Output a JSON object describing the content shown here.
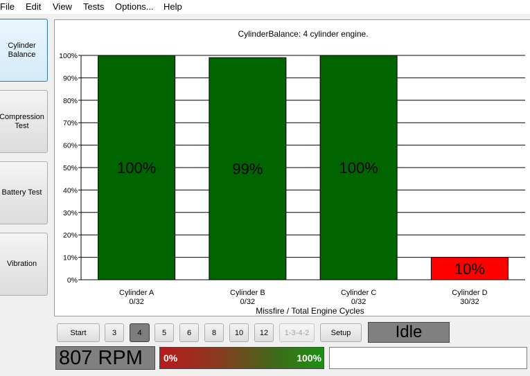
{
  "menu": [
    "File",
    "Edit",
    "View",
    "Tests",
    "Options...",
    "Help"
  ],
  "sidebar": [
    {
      "label": "Cylinder Balance",
      "active": true
    },
    {
      "label": "Compression Test",
      "active": false
    },
    {
      "label": "Battery Test",
      "active": false
    },
    {
      "label": "Vibration",
      "active": false
    }
  ],
  "chart_data": {
    "type": "bar",
    "title": "CylinderBalance: 4 cylinder engine.",
    "xlabel": "Missfire / Total Engine Cycles",
    "ylabel": "",
    "ylim": [
      0,
      100
    ],
    "yticks": [
      "0%",
      "10%",
      "20%",
      "30%",
      "40%",
      "50%",
      "60%",
      "70%",
      "80%",
      "90%",
      "100%"
    ],
    "categories": [
      "Cylinder A",
      "Cylinder B",
      "Cylinder C",
      "Cylinder D"
    ],
    "sublabels": [
      "0/32",
      "0/32",
      "0/32",
      "30/32"
    ],
    "values": [
      100,
      99,
      100,
      10
    ],
    "value_labels": [
      "100%",
      "99%",
      "100%",
      "10%"
    ],
    "bar_colors": [
      "#006400",
      "#006400",
      "#006400",
      "#ff0000"
    ],
    "grid": true,
    "legend": "none"
  },
  "controls": {
    "start": "Start",
    "cylinder_options": [
      "3",
      "4",
      "5",
      "6",
      "8",
      "10",
      "12"
    ],
    "selected_cylinders": "4",
    "firing_order": "1-3-4-2",
    "setup": "Setup",
    "status": "Idle",
    "rpm": "807 RPM",
    "gauge_min": "0%",
    "gauge_max": "100%",
    "message": ""
  }
}
